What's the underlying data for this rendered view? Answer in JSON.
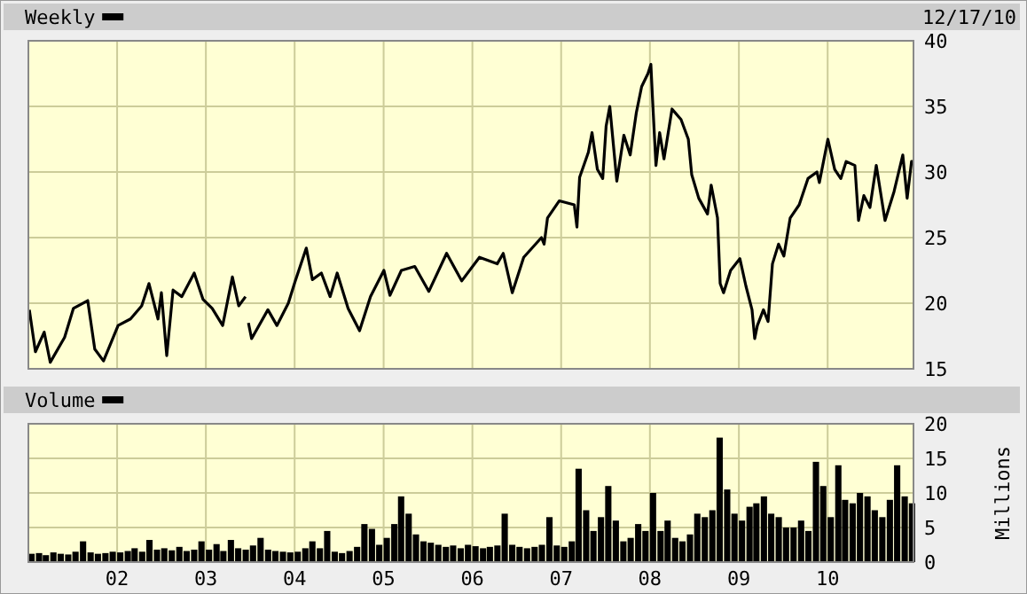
{
  "chart_data": [
    {
      "type": "line",
      "annotations": [
        "12/17/10"
      ],
      "legend": "top left",
      "grid": true,
      "tick_labels": "y",
      "xlim": [
        "2001-01-01",
        "2010-12-20"
      ],
      "xticks": [
        {
          "value": "2002-01-01",
          "label": null
        },
        {
          "value": "2003-01-01",
          "label": null
        },
        {
          "value": "2004-01-01",
          "label": null
        },
        {
          "value": "2005-01-01",
          "label": null
        },
        {
          "value": "2006-01-01",
          "label": null
        },
        {
          "value": "2007-01-01",
          "label": null
        },
        {
          "value": "2008-01-01",
          "label": null
        },
        {
          "value": "2009-01-01",
          "label": null
        },
        {
          "value": "2010-01-01",
          "label": null
        }
      ],
      "ylim": [
        15,
        40
      ],
      "yticks": [
        15,
        20,
        25,
        30,
        35,
        40
      ],
      "x": [
        "2001-01-05",
        "2001-01-30",
        "2001-03-07",
        "2001-04-01",
        "2001-05-30",
        "2001-07-05",
        "2001-09-02",
        "2001-10-01",
        "2001-11-06",
        "2002-01-05",
        "2002-02-25",
        "2002-04-12",
        "2002-05-12",
        "2002-06-18",
        "2002-07-02",
        "2002-07-24",
        "2002-08-19",
        "2002-09-24",
        "2002-11-14",
        "2002-12-20",
        "2003-01-27",
        "2003-03-11",
        "2003-04-20",
        "2003-05-16",
        "2003-06-13",
        "2003-06-20",
        "2003-06-25",
        "2003-07-08",
        "2003-09-13",
        "2003-10-20",
        "2003-12-06",
        "2004-01-02",
        "2004-02-18",
        "2004-03-14",
        "2004-04-20",
        "2004-05-26",
        "2004-06-24",
        "2004-08-08",
        "2004-09-24",
        "2004-11-08",
        "2005-01-02",
        "2005-01-27",
        "2005-03-15",
        "2005-05-09",
        "2005-07-06",
        "2005-09-17",
        "2005-11-18",
        "2006-01-30",
        "2006-04-13",
        "2006-05-08",
        "2006-06-14",
        "2006-07-31",
        "2006-10-12",
        "2006-10-23",
        "2006-11-06",
        "2006-12-24",
        "2007-02-24",
        "2007-03-07",
        "2007-03-18",
        "2007-04-23",
        "2007-05-08",
        "2007-05-30",
        "2007-06-21",
        "2007-07-05",
        "2007-07-20",
        "2007-08-18",
        "2007-09-16",
        "2007-10-12",
        "2007-11-06",
        "2007-11-28",
        "2007-12-24",
        "2008-01-05",
        "2008-01-12",
        "2008-01-26",
        "2008-02-10",
        "2008-02-28",
        "2008-04-01",
        "2008-05-08",
        "2008-06-07",
        "2008-06-21",
        "2008-07-20",
        "2008-08-25",
        "2008-09-09",
        "2008-10-05",
        "2008-10-16",
        "2008-10-30",
        "2008-11-28",
        "2009-01-05",
        "2009-01-30",
        "2009-02-24",
        "2009-03-07",
        "2009-03-18",
        "2009-04-12",
        "2009-05-01",
        "2009-05-19",
        "2009-06-13",
        "2009-07-05",
        "2009-07-31",
        "2009-09-06",
        "2009-10-12",
        "2009-11-18",
        "2009-11-28",
        "2010-01-02",
        "2010-01-30",
        "2010-02-24",
        "2010-03-18",
        "2010-04-23",
        "2010-05-08",
        "2010-05-30",
        "2010-06-24",
        "2010-07-20",
        "2010-08-25",
        "2010-10-01",
        "2010-11-06",
        "2010-11-24",
        "2010-12-12",
        "2010-12-17"
      ],
      "series": [
        {
          "name": "Weekly",
          "color": "#000000",
          "values": [
            19.5,
            16.3,
            17.8,
            15.5,
            17.4,
            19.6,
            20.2,
            16.5,
            15.6,
            18.3,
            18.8,
            19.8,
            21.5,
            18.8,
            20.8,
            16.0,
            21.0,
            20.5,
            22.3,
            20.3,
            19.6,
            18.3,
            22.0,
            19.8,
            20.5,
            null,
            18.5,
            17.3,
            19.5,
            18.3,
            20.0,
            21.6,
            24.2,
            21.8,
            22.3,
            20.5,
            22.3,
            19.6,
            17.9,
            20.5,
            22.5,
            20.6,
            22.5,
            22.8,
            20.9,
            23.8,
            21.7,
            23.5,
            23.0,
            23.8,
            20.8,
            23.5,
            25.0,
            24.5,
            26.5,
            27.8,
            27.5,
            25.8,
            29.6,
            31.5,
            33.0,
            30.2,
            29.5,
            33.5,
            35.0,
            29.3,
            32.8,
            31.3,
            34.5,
            36.5,
            37.5,
            38.2,
            35.5,
            30.5,
            33.0,
            31.0,
            34.8,
            34.0,
            32.5,
            29.8,
            28.0,
            26.8,
            29.0,
            26.5,
            21.5,
            20.8,
            22.5,
            23.4,
            21.3,
            19.5,
            17.3,
            18.3,
            19.5,
            18.6,
            23.0,
            24.5,
            23.6,
            26.5,
            27.5,
            29.5,
            30.0,
            29.2,
            32.5,
            30.2,
            29.5,
            30.8,
            30.5,
            26.3,
            28.2,
            27.3,
            30.5,
            26.3,
            28.5,
            31.3,
            28.0,
            30.8,
            30.8
          ]
        }
      ]
    },
    {
      "type": "bar",
      "ylabel": "Millions",
      "legend": "top left",
      "grid": true,
      "xlim": [
        "2001-01-01",
        "2010-12-20"
      ],
      "xticks": [
        {
          "value": "2002-01-01",
          "label": "02"
        },
        {
          "value": "2003-01-01",
          "label": "03"
        },
        {
          "value": "2004-01-01",
          "label": "04"
        },
        {
          "value": "2005-01-01",
          "label": "05"
        },
        {
          "value": "2006-01-01",
          "label": "06"
        },
        {
          "value": "2007-01-01",
          "label": "07"
        },
        {
          "value": "2008-01-01",
          "label": "08"
        },
        {
          "value": "2009-01-01",
          "label": "09"
        },
        {
          "value": "2010-01-01",
          "label": "10"
        }
      ],
      "ylim": [
        0,
        20
      ],
      "yticks": [
        0,
        5,
        10,
        15,
        20
      ],
      "x": [
        "2001-01",
        "2001-02",
        "2001-03",
        "2001-04",
        "2001-05",
        "2001-06",
        "2001-07",
        "2001-08",
        "2001-09",
        "2001-10",
        "2001-11",
        "2001-12",
        "2002-01",
        "2002-02",
        "2002-03",
        "2002-04",
        "2002-05",
        "2002-06",
        "2002-07",
        "2002-08",
        "2002-09",
        "2002-10",
        "2002-11",
        "2002-12",
        "2003-01",
        "2003-02",
        "2003-03",
        "2003-04",
        "2003-05",
        "2003-06",
        "2003-07",
        "2003-08",
        "2003-09",
        "2003-10",
        "2003-11",
        "2003-12",
        "2004-01",
        "2004-02",
        "2004-03",
        "2004-04",
        "2004-05",
        "2004-06",
        "2004-07",
        "2004-08",
        "2004-09",
        "2004-10",
        "2004-11",
        "2004-12",
        "2005-01",
        "2005-02",
        "2005-03",
        "2005-04",
        "2005-05",
        "2005-06",
        "2005-07",
        "2005-08",
        "2005-09",
        "2005-10",
        "2005-11",
        "2005-12",
        "2006-01",
        "2006-02",
        "2006-03",
        "2006-04",
        "2006-05",
        "2006-06",
        "2006-07",
        "2006-08",
        "2006-09",
        "2006-10",
        "2006-11",
        "2006-12",
        "2007-01",
        "2007-02",
        "2007-03",
        "2007-04",
        "2007-05",
        "2007-06",
        "2007-07",
        "2007-08",
        "2007-09",
        "2007-10",
        "2007-11",
        "2007-12",
        "2008-01",
        "2008-02",
        "2008-03",
        "2008-04",
        "2008-05",
        "2008-06",
        "2008-07",
        "2008-08",
        "2008-09",
        "2008-10",
        "2008-11",
        "2008-12",
        "2009-01",
        "2009-02",
        "2009-03",
        "2009-04",
        "2009-05",
        "2009-06",
        "2009-07",
        "2009-08",
        "2009-09",
        "2009-10",
        "2009-11",
        "2009-12",
        "2010-01",
        "2010-02",
        "2010-03",
        "2010-04",
        "2010-05",
        "2010-06",
        "2010-07",
        "2010-08",
        "2010-09",
        "2010-10",
        "2010-11",
        "2010-12"
      ],
      "series": [
        {
          "name": "Volume",
          "color": "#000000",
          "values": [
            1.2,
            1.3,
            1.0,
            1.4,
            1.2,
            1.1,
            1.5,
            3.0,
            1.4,
            1.2,
            1.3,
            1.5,
            1.4,
            1.6,
            2.0,
            1.5,
            3.2,
            1.8,
            2.0,
            1.7,
            2.2,
            1.6,
            1.8,
            3.0,
            1.8,
            2.6,
            1.6,
            3.2,
            2.0,
            1.8,
            2.4,
            3.5,
            1.8,
            1.6,
            1.5,
            1.4,
            1.5,
            2.0,
            3.0,
            2.0,
            4.5,
            1.5,
            1.3,
            1.6,
            2.2,
            5.5,
            4.8,
            2.5,
            3.5,
            5.5,
            9.5,
            7.0,
            4.0,
            3.0,
            2.8,
            2.5,
            2.2,
            2.4,
            2.0,
            2.5,
            2.3,
            2.0,
            2.2,
            2.4,
            7.0,
            2.5,
            2.2,
            2.0,
            2.2,
            2.5,
            6.5,
            2.4,
            2.2,
            3.0,
            13.5,
            7.5,
            4.5,
            6.5,
            11.0,
            6.0,
            3.0,
            3.5,
            5.5,
            4.5,
            10.0,
            4.5,
            6.0,
            3.5,
            3.0,
            4.0,
            7.0,
            6.5,
            7.5,
            18.0,
            10.5,
            7.0,
            6.0,
            8.0,
            8.5,
            9.5,
            7.0,
            6.5,
            5.0,
            5.0,
            6.0,
            4.5,
            14.5,
            11.0,
            6.5,
            14.0,
            9.0,
            8.5,
            10.0,
            9.5,
            7.5,
            6.5,
            9.0,
            14.0,
            9.5,
            8.5
          ]
        }
      ]
    }
  ]
}
